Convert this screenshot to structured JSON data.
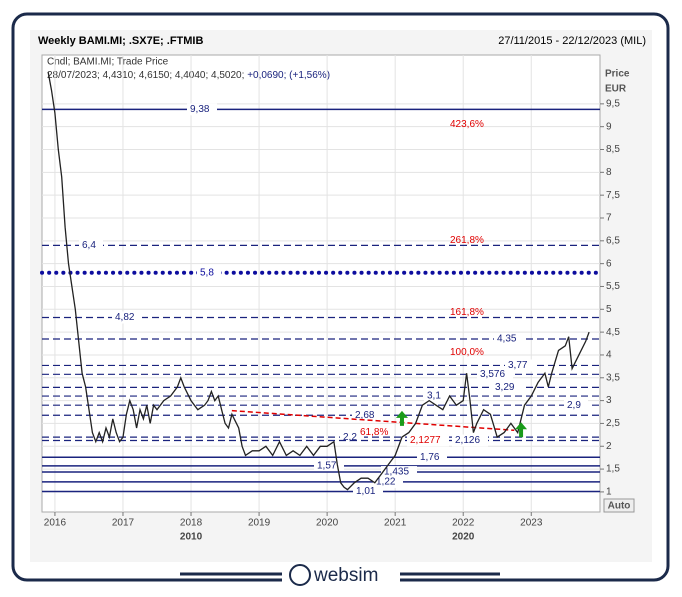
{
  "header": {
    "title": "Weekly BAMI.MI; .SX7E; .FTMIB",
    "range": "27/11/2015 - 22/12/2023 (MIL)"
  },
  "legend": {
    "line1": "Cndl; BAMI.MI; Trade Price",
    "line2": "28/07/2023; 4,4310; 4,6150; 4,4040; 4,5020;",
    "change": "+0,0690; (+1,56%)"
  },
  "axis": {
    "title1": "Price",
    "title2": "EUR",
    "button": "Auto"
  },
  "footer": {
    "brand": "websim"
  },
  "chart_data": {
    "type": "line",
    "color": "#222222",
    "xlim": [
      2015.81,
      2024.01
    ],
    "ylim": [
      0.56,
      10.57
    ],
    "xticks": [
      2016,
      2017,
      2018,
      2019,
      2020,
      2021,
      2022,
      2023
    ],
    "decade_labels": [
      {
        "value": 2018,
        "label": "2010"
      },
      {
        "value": 2022,
        "label": "2020"
      }
    ],
    "yticks": [
      1,
      {
        "value": 1.5,
        "label": "1,5"
      },
      2,
      {
        "value": 2.5,
        "label": "2,5"
      },
      3,
      {
        "value": 3.5,
        "label": "3,5"
      },
      4,
      {
        "value": 4.5,
        "label": "4,5"
      },
      5,
      {
        "value": 5.5,
        "label": "5,5"
      },
      6,
      {
        "value": 6.5,
        "label": "6,5"
      },
      7,
      {
        "value": 7.5,
        "label": "7,5"
      },
      8,
      {
        "value": 8.5,
        "label": "8,5"
      },
      9,
      {
        "value": 9.5,
        "label": "9,5"
      }
    ],
    "grid": true,
    "x": [
      2015.9,
      2015.95,
      2016.0,
      2016.05,
      2016.1,
      2016.15,
      2016.2,
      2016.25,
      2016.3,
      2016.35,
      2016.4,
      2016.45,
      2016.5,
      2016.55,
      2016.6,
      2016.65,
      2016.7,
      2016.75,
      2016.8,
      2016.85,
      2016.9,
      2016.95,
      2017.0,
      2017.05,
      2017.1,
      2017.15,
      2017.2,
      2017.25,
      2017.3,
      2017.35,
      2017.4,
      2017.45,
      2017.5,
      2017.6,
      2017.7,
      2017.8,
      2017.85,
      2017.9,
      2018.0,
      2018.1,
      2018.2,
      2018.25,
      2018.3,
      2018.35,
      2018.4,
      2018.45,
      2018.5,
      2018.55,
      2018.6,
      2018.7,
      2018.75,
      2018.8,
      2018.9,
      2019.0,
      2019.1,
      2019.2,
      2019.3,
      2019.4,
      2019.5,
      2019.6,
      2019.7,
      2019.8,
      2019.9,
      2020.0,
      2020.1,
      2020.15,
      2020.2,
      2020.25,
      2020.3,
      2020.4,
      2020.5,
      2020.6,
      2020.7,
      2020.8,
      2020.9,
      2021.0,
      2021.1,
      2021.2,
      2021.3,
      2021.4,
      2021.5,
      2021.6,
      2021.7,
      2021.8,
      2021.9,
      2022.0,
      2022.05,
      2022.1,
      2022.15,
      2022.2,
      2022.3,
      2022.4,
      2022.5,
      2022.6,
      2022.7,
      2022.8,
      2022.9,
      2023.0,
      2023.1,
      2023.2,
      2023.25,
      2023.3,
      2023.4,
      2023.5,
      2023.55,
      2023.6,
      2023.7,
      2023.8,
      2023.85
    ],
    "values": [
      10.2,
      9.8,
      9.3,
      8.5,
      7.9,
      6.8,
      6.0,
      5.5,
      5.0,
      4.3,
      3.6,
      3.3,
      2.8,
      2.3,
      2.1,
      2.3,
      2.1,
      2.4,
      2.2,
      2.6,
      2.3,
      2.1,
      2.2,
      2.7,
      3.0,
      2.8,
      2.4,
      2.8,
      2.6,
      2.9,
      2.5,
      2.9,
      2.8,
      3.0,
      3.1,
      3.3,
      3.5,
      3.3,
      3.0,
      2.8,
      2.9,
      3.0,
      3.2,
      3.0,
      3.1,
      2.8,
      2.5,
      2.4,
      2.7,
      2.4,
      2.0,
      1.8,
      1.9,
      1.9,
      2.0,
      1.8,
      2.1,
      1.8,
      1.9,
      1.8,
      2.0,
      1.8,
      2.0,
      2.0,
      2.1,
      1.6,
      1.2,
      1.1,
      1.05,
      1.2,
      1.3,
      1.3,
      1.2,
      1.4,
      1.6,
      1.8,
      2.2,
      2.3,
      2.5,
      2.9,
      3.0,
      2.9,
      2.8,
      3.1,
      2.9,
      3.0,
      3.6,
      3.0,
      2.3,
      2.5,
      2.8,
      2.7,
      2.2,
      2.3,
      2.5,
      2.3,
      2.9,
      3.1,
      3.4,
      3.6,
      3.3,
      3.6,
      4.1,
      4.2,
      4.4,
      3.7,
      4.0,
      4.3,
      4.5
    ],
    "levels": [
      {
        "value": 9.38,
        "label": "9,38",
        "style": "solid",
        "color": "#1a237e"
      },
      {
        "value": 6.4,
        "label": "6,4",
        "style": "dashed",
        "color": "#1a237e"
      },
      {
        "value": 5.8,
        "label": "5,8",
        "style": "dotted",
        "color": "#0d0d9e"
      },
      {
        "value": 4.82,
        "label": "4,82",
        "style": "dashed",
        "color": "#1a237e"
      },
      {
        "value": 4.35,
        "label": "4,35",
        "style": "dashed",
        "color": "#1a237e"
      },
      {
        "value": 3.77,
        "label": "3,77",
        "style": "dashed",
        "color": "#1a237e"
      },
      {
        "value": 3.576,
        "label": "3,576",
        "style": "dashed",
        "color": "#1a237e"
      },
      {
        "value": 3.29,
        "label": "3,29",
        "style": "dashed",
        "color": "#1a237e"
      },
      {
        "value": 3.1,
        "label": "3,1",
        "style": "dashed",
        "color": "#1a237e"
      },
      {
        "value": 2.9,
        "label": "2,9",
        "style": "dashed",
        "color": "#1a237e"
      },
      {
        "value": 2.68,
        "label": "2,68",
        "style": "dashed",
        "color": "#1a237e"
      },
      {
        "value": 2.2,
        "label": "2,2",
        "style": "dashed",
        "color": "#1a237e"
      },
      {
        "value": 2.126,
        "label": "2,126",
        "style": "dashed",
        "color": "#1a237e"
      },
      {
        "value": 2.1277,
        "label": "2,1277",
        "style": "none",
        "color": "#e00000"
      },
      {
        "value": 1.76,
        "label": "1,76",
        "style": "solid",
        "color": "#1a237e"
      },
      {
        "value": 1.57,
        "label": "1,57",
        "style": "solid",
        "color": "#1a237e"
      },
      {
        "value": 1.435,
        "label": "1,435",
        "style": "solid",
        "color": "#1a237e"
      },
      {
        "value": 1.22,
        "label": "1,22",
        "style": "solid",
        "color": "#1a237e"
      },
      {
        "value": 1.01,
        "label": "1,01",
        "style": "solid",
        "color": "#1a237e"
      }
    ],
    "fibonacci": [
      {
        "value": 423.6,
        "label": "423,6%",
        "price": 9.05
      },
      {
        "value": 261.8,
        "label": "261,8%",
        "price": 6.4
      },
      {
        "value": 161.8,
        "label": "161,8%",
        "price": 4.82
      },
      {
        "value": 100.0,
        "label": "100,0%",
        "price": 3.95
      },
      {
        "value": 61.8,
        "label": "61,8%",
        "price": 2.2
      }
    ],
    "fib_color": "#e00000",
    "trendline": {
      "x": [
        2018.6,
        2022.75
      ],
      "y": [
        2.78,
        2.35
      ],
      "color": "#e00000"
    },
    "signals": {
      "x": [
        2021.1,
        2022.85
      ],
      "y": [
        2.6,
        2.35
      ],
      "color": "#1a9b1a"
    }
  }
}
